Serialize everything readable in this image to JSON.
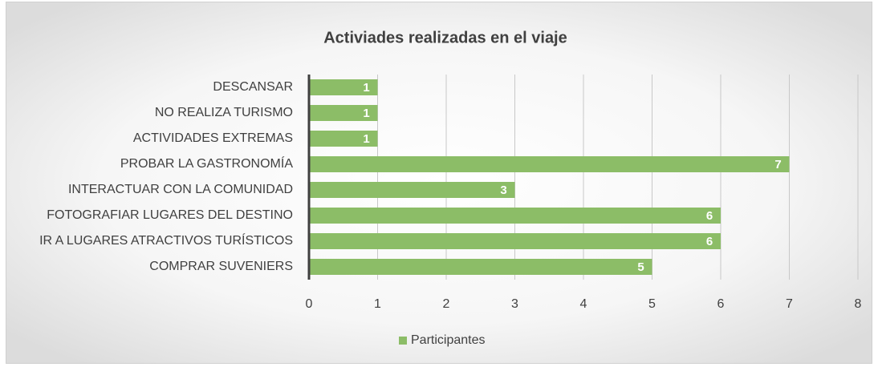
{
  "chart_data": {
    "type": "hbar",
    "title": "Activiades realizadas en el viaje",
    "categories": [
      "DESCANSAR",
      "NO REALIZA TURISMO",
      "ACTIVIDADES EXTREMAS",
      "PROBAR LA GASTRONOMÍA",
      "INTERACTUAR CON LA COMUNIDAD",
      "FOTOGRAFIAR LUGARES DEL DESTINO",
      "IR A LUGARES ATRACTIVOS TURÍSTICOS",
      "COMPRAR SUVENIERS"
    ],
    "series": [
      {
        "name": "Participantes",
        "color": "#8cbd67",
        "values": [
          1,
          1,
          1,
          7,
          3,
          6,
          6,
          5
        ]
      }
    ],
    "xlim": [
      0,
      8
    ],
    "xticks": [
      0,
      1,
      2,
      3,
      4,
      5,
      6,
      7,
      8
    ],
    "grid": true,
    "legend": "bottom"
  }
}
